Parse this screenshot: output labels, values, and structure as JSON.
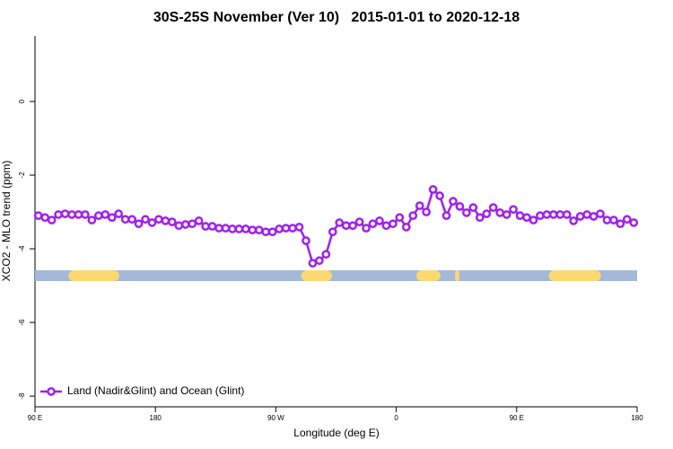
{
  "chart_data": {
    "type": "line",
    "title": "30S-25S November (Ver 10)   2015-01-01 to 2020-12-18",
    "xlabel": "Longitude (deg E)",
    "ylabel": "XCO2 - MLO trend (ppm)",
    "xlim": [
      90,
      540
    ],
    "xticks": [
      {
        "value": 90,
        "label": "90 E"
      },
      180,
      {
        "value": 270,
        "label": "90 W"
      },
      {
        "value": 360,
        "label": "0"
      },
      {
        "value": 450,
        "label": "90 E"
      },
      {
        "value": 540,
        "label": "180"
      }
    ],
    "ylim": [
      -8.29,
      1.78
    ],
    "yticks": [
      0,
      -2,
      -4,
      -6,
      -8
    ],
    "legend": "bottom-left",
    "series": [
      {
        "name": "Land (Nadir&Glint) and Ocean (Glint)",
        "color": "#a020f0",
        "x": [
          92.5,
          97.5,
          102.5,
          107.5,
          112.5,
          117.5,
          122.5,
          127.5,
          132.5,
          137.5,
          142.5,
          147.5,
          152.5,
          157.5,
          162.5,
          167.5,
          172.5,
          177.5,
          182.5,
          187.5,
          192.5,
          197.5,
          202.5,
          207.5,
          212.5,
          217.5,
          222.5,
          227.5,
          232.5,
          237.5,
          242.5,
          247.5,
          252.5,
          257.5,
          262.5,
          267.5,
          272.5,
          277.5,
          282.5,
          287.5,
          292.5,
          297.5,
          302.5,
          307.5,
          312.5,
          317.5,
          322.5,
          327.5,
          332.5,
          337.5,
          342.5,
          347.5,
          352.5,
          357.5,
          362.5,
          367.5,
          372.5,
          377.5,
          382.5,
          387.5,
          392.5,
          397.5,
          402.5,
          407.5,
          412.5,
          417.5,
          422.5,
          427.5,
          432.5,
          437.5,
          442.5,
          447.5,
          452.5,
          457.5,
          462.5,
          467.5,
          472.5,
          477.5,
          482.5,
          487.5,
          492.5,
          497.5,
          502.5,
          507.5,
          512.5,
          517.5,
          522.5,
          527.5,
          532.5,
          537.5
        ],
        "values": [
          -3.1,
          -3.15,
          -3.22,
          -3.07,
          -3.05,
          -3.07,
          -3.07,
          -3.07,
          -3.22,
          -3.1,
          -3.07,
          -3.15,
          -3.05,
          -3.2,
          -3.2,
          -3.32,
          -3.2,
          -3.29,
          -3.2,
          -3.24,
          -3.27,
          -3.37,
          -3.34,
          -3.32,
          -3.24,
          -3.39,
          -3.39,
          -3.44,
          -3.44,
          -3.46,
          -3.46,
          -3.46,
          -3.49,
          -3.49,
          -3.54,
          -3.54,
          -3.46,
          -3.44,
          -3.44,
          -3.41,
          -3.78,
          -4.39,
          -4.32,
          -4.15,
          -3.54,
          -3.29,
          -3.37,
          -3.37,
          -3.27,
          -3.44,
          -3.32,
          -3.24,
          -3.37,
          -3.32,
          -3.15,
          -3.41,
          -3.1,
          -2.83,
          -3.0,
          -2.39,
          -2.56,
          -3.1,
          -2.71,
          -2.85,
          -3.02,
          -2.88,
          -3.15,
          -3.05,
          -2.88,
          -3.02,
          -3.07,
          -2.93,
          -3.1,
          -3.15,
          -3.22,
          -3.1,
          -3.07,
          -3.07,
          -3.07,
          -3.07,
          -3.24,
          -3.12,
          -3.07,
          -3.12,
          -3.05,
          -3.22,
          -3.22,
          -3.32,
          -3.2,
          -3.29
        ]
      }
    ],
    "surface_band": {
      "y": -4.73,
      "ocean_color": "#a3b9d7",
      "land_color": "#fcd873",
      "land": [
        [
          115,
          153
        ],
        [
          289,
          312
        ],
        [
          375,
          393
        ],
        [
          404,
          407
        ],
        [
          474,
          513
        ]
      ]
    }
  }
}
